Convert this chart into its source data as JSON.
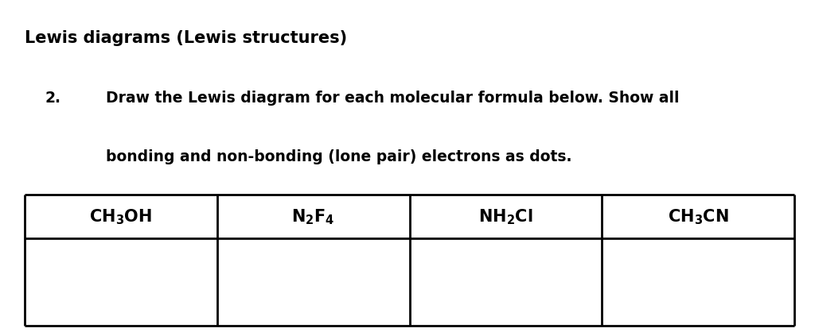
{
  "title": "Lewis diagrams (Lewis structures)",
  "question_number": "2.",
  "question_text_line1": "Draw the Lewis diagram for each molecular formula below. Show all",
  "question_text_line2": "bonding and non-bonding (lone pair) electrons as dots.",
  "header_labels": [
    "$\\mathbf{CH_3OH}$",
    "$\\mathbf{N_2F_4}$",
    "$\\mathbf{NH_2Cl}$",
    "$\\mathbf{CH_3CN}$"
  ],
  "background_color": "#ffffff",
  "text_color": "#000000",
  "title_fontsize": 15,
  "question_fontsize": 13.5,
  "header_fontsize": 15,
  "border_lw": 2.0,
  "fig_width": 10.24,
  "fig_height": 4.23,
  "dpi": 100
}
